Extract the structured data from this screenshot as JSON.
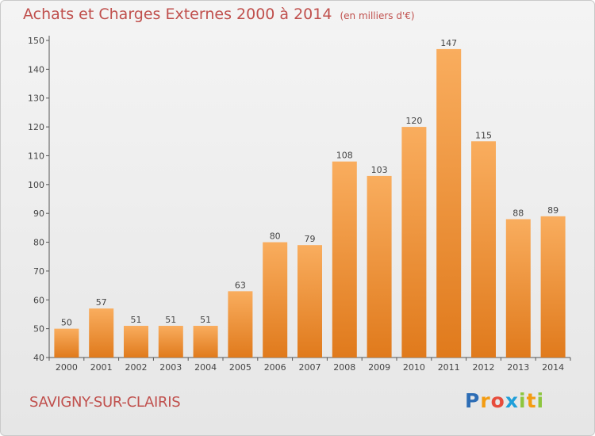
{
  "header": {
    "title": "Achats et Charges Externes 2000 à 2014",
    "unit": "(en milliers d'€)"
  },
  "footer": {
    "commune": "SAVIGNY-SUR-CLAIRIS",
    "logo": "Proxiti"
  },
  "colors": {
    "title": "#c0504d",
    "bar_light": "#f9ad5e",
    "bar_dark": "#e07a1c"
  },
  "chart_data": {
    "type": "bar",
    "title": "Achats et Charges Externes 2000 à 2014",
    "subtitle": "(en milliers d'€)",
    "categories": [
      "2000",
      "2001",
      "2002",
      "2003",
      "2004",
      "2005",
      "2006",
      "2007",
      "2008",
      "2009",
      "2010",
      "2011",
      "2012",
      "2013",
      "2014"
    ],
    "values": [
      50,
      57,
      51,
      51,
      51,
      63,
      80,
      79,
      108,
      103,
      120,
      147,
      115,
      88,
      89
    ],
    "ylim": [
      40,
      150
    ],
    "yticks": [
      40,
      50,
      60,
      70,
      80,
      90,
      100,
      110,
      120,
      130,
      140,
      150
    ],
    "grid": false,
    "data_labels": true
  }
}
